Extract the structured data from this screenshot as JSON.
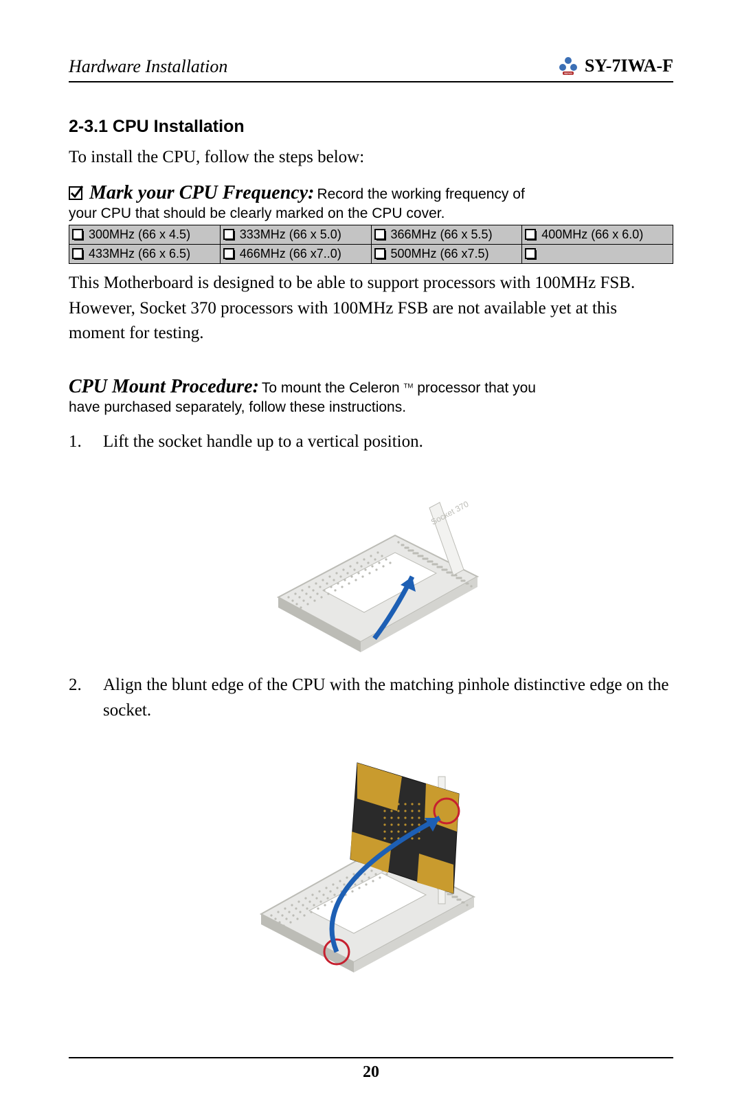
{
  "header": {
    "left": "Hardware Installation",
    "right": "SY-7IWA-F",
    "logo_color_a": "#3b6fb5",
    "logo_color_b": "#b02a2a"
  },
  "section": {
    "number_title": "2-3.1  CPU Installation",
    "intro": "To install the CPU, follow the steps below:"
  },
  "mark": {
    "title": "Mark your CPU Frequency:",
    "rest": "Record the working frequency of",
    "sub": "your CPU that should be clearly marked on the CPU cover."
  },
  "freq_table": {
    "bg": "#c4c4c4",
    "rows": [
      [
        "300MHz (66 x 4.5)",
        "333MHz (66 x 5.0)",
        "366MHz (66 x 5.5)",
        "400MHz (66 x 6.0)"
      ],
      [
        "433MHz (66 x 6.5)",
        "466MHz (66 x7..0)",
        "500MHz (66 x7.5)",
        ""
      ]
    ]
  },
  "after_table": "This Motherboard is designed to be able to support processors with 100MHz FSB. However, Socket 370 processors with 100MHz FSB are not available yet at this moment for testing.",
  "mount": {
    "title": "CPU Mount Procedure:",
    "rest_a": "To mount the Celeron ",
    "tm": "TM",
    "rest_b": " processor that you",
    "sub": "have purchased separately, follow these instructions."
  },
  "steps": {
    "s1_num": "1.",
    "s1_text": "Lift the socket handle up to a vertical position.",
    "s2_num": "2.",
    "s2_text": "Align the blunt edge of the CPU with the matching pinhole distinctive edge on the socket."
  },
  "page_number": "20",
  "figure_colors": {
    "socket_light": "#e8e8e6",
    "socket_mid": "#d4d4d0",
    "socket_dark": "#bcbcb6",
    "arrow": "#1d5fb4",
    "cpu_dark": "#2a2a2a",
    "cpu_gold": "#c99b2e",
    "circle": "#c6202f",
    "lever": "#f2f2f0"
  }
}
